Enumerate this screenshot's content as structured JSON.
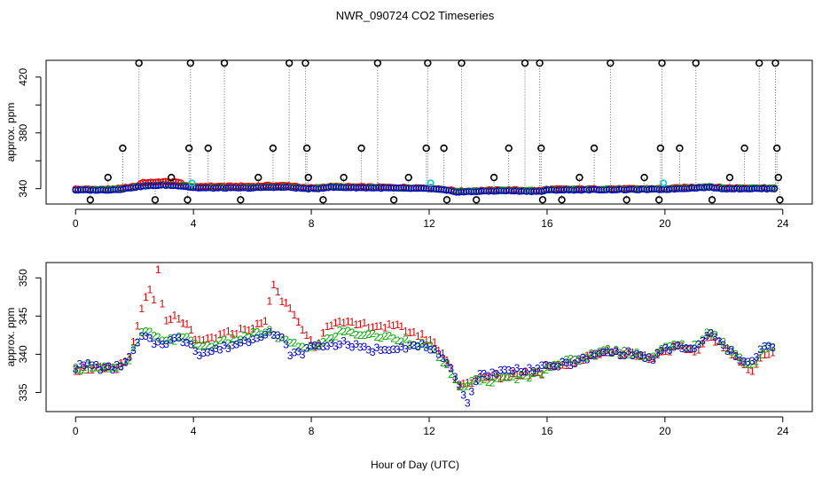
{
  "title": "NWR_090724  CO2 Timeseries",
  "chart_data": [
    {
      "type": "scatter",
      "id": "top",
      "ylabel": "approx. ppm",
      "xlim": [
        -1,
        25
      ],
      "ylim": [
        329,
        432
      ],
      "x_ticks": [
        0,
        4,
        8,
        12,
        16,
        20,
        24
      ],
      "x_tick_labels": [
        "0",
        "4",
        "8",
        "12",
        "16",
        "20",
        "24"
      ],
      "y_ticks": [
        340,
        360,
        380,
        400,
        420
      ],
      "y_tick_labels": [
        "340",
        "",
        "380",
        "",
        "420"
      ],
      "series_colors": {
        "s1": "#dd0000",
        "s2": "#00aa00",
        "s3": "#0000cc",
        "flag": "#000000",
        "cal": "#00cccc"
      },
      "baseline_knots": [
        [
          0,
          339
        ],
        [
          1,
          339
        ],
        [
          1.5,
          339.5
        ],
        [
          2,
          341
        ],
        [
          2.4,
          342
        ],
        [
          3,
          342.5
        ],
        [
          3.6,
          342
        ],
        [
          3.9,
          341
        ],
        [
          4.2,
          340.5
        ],
        [
          6,
          340.5
        ],
        [
          6.5,
          341
        ],
        [
          7.2,
          341
        ],
        [
          7.8,
          340
        ],
        [
          8.2,
          340
        ],
        [
          8.6,
          341
        ],
        [
          12,
          340
        ],
        [
          12.5,
          339
        ],
        [
          13,
          337.5
        ],
        [
          13.6,
          338
        ],
        [
          14.5,
          338.5
        ],
        [
          15.8,
          338
        ],
        [
          16,
          339
        ],
        [
          20,
          339.5
        ],
        [
          21.5,
          341
        ],
        [
          22,
          340
        ],
        [
          23.7,
          340
        ]
      ],
      "excursions": [
        {
          "x": 0.5,
          "y": 332
        },
        {
          "x": 1.1,
          "y": 348
        },
        {
          "x": 1.6,
          "y": 369
        },
        {
          "x": 2.15,
          "y": 430
        },
        {
          "x": 2.7,
          "y": 332
        },
        {
          "x": 3.25,
          "y": 348
        },
        {
          "x": 3.8,
          "y": 332
        },
        {
          "x": 3.85,
          "y": 369
        },
        {
          "x": 3.9,
          "y": 430
        },
        {
          "x": 4.5,
          "y": 369
        },
        {
          "x": 5.05,
          "y": 430
        },
        {
          "x": 5.6,
          "y": 332
        },
        {
          "x": 6.2,
          "y": 348
        },
        {
          "x": 6.7,
          "y": 369
        },
        {
          "x": 7.25,
          "y": 430
        },
        {
          "x": 7.8,
          "y": 430
        },
        {
          "x": 7.85,
          "y": 369
        },
        {
          "x": 7.9,
          "y": 348
        },
        {
          "x": 8.4,
          "y": 332
        },
        {
          "x": 9.1,
          "y": 348
        },
        {
          "x": 9.7,
          "y": 369
        },
        {
          "x": 10.25,
          "y": 430
        },
        {
          "x": 10.8,
          "y": 332
        },
        {
          "x": 11.3,
          "y": 348
        },
        {
          "x": 11.9,
          "y": 369
        },
        {
          "x": 11.95,
          "y": 430
        },
        {
          "x": 12.5,
          "y": 369
        },
        {
          "x": 12.6,
          "y": 332
        },
        {
          "x": 13.1,
          "y": 430
        },
        {
          "x": 13.6,
          "y": 332
        },
        {
          "x": 14.2,
          "y": 348
        },
        {
          "x": 14.7,
          "y": 369
        },
        {
          "x": 15.25,
          "y": 430
        },
        {
          "x": 15.75,
          "y": 430
        },
        {
          "x": 15.8,
          "y": 369
        },
        {
          "x": 15.85,
          "y": 332
        },
        {
          "x": 16.5,
          "y": 332
        },
        {
          "x": 17.1,
          "y": 348
        },
        {
          "x": 17.6,
          "y": 369
        },
        {
          "x": 18.15,
          "y": 430
        },
        {
          "x": 18.7,
          "y": 332
        },
        {
          "x": 19.3,
          "y": 348
        },
        {
          "x": 19.8,
          "y": 332
        },
        {
          "x": 19.85,
          "y": 369
        },
        {
          "x": 19.9,
          "y": 430
        },
        {
          "x": 20.5,
          "y": 369
        },
        {
          "x": 21.05,
          "y": 430
        },
        {
          "x": 21.6,
          "y": 332
        },
        {
          "x": 22.2,
          "y": 348
        },
        {
          "x": 22.7,
          "y": 369
        },
        {
          "x": 23.2,
          "y": 430
        },
        {
          "x": 23.75,
          "y": 430
        },
        {
          "x": 23.8,
          "y": 369
        },
        {
          "x": 23.85,
          "y": 348
        },
        {
          "x": 23.9,
          "y": 332
        }
      ],
      "cal_points": [
        {
          "x": 3.95,
          "y": 344
        },
        {
          "x": 12.05,
          "y": 344
        },
        {
          "x": 19.95,
          "y": 344
        }
      ]
    },
    {
      "type": "line",
      "id": "bottom",
      "ylabel": "approx. ppm",
      "xlabel": "Hour of Day (UTC)",
      "xlim": [
        -1,
        25
      ],
      "ylim": [
        332.5,
        352
      ],
      "x_ticks": [
        0,
        4,
        8,
        12,
        16,
        20,
        24
      ],
      "x_tick_labels": [
        "0",
        "4",
        "8",
        "12",
        "16",
        "20",
        "24"
      ],
      "y_ticks": [
        335,
        340,
        345,
        350
      ],
      "y_tick_labels": [
        "335",
        "340",
        "345",
        "350"
      ],
      "series": [
        {
          "name": "1",
          "color": "#dd0000",
          "knots": [
            [
              0,
              338
            ],
            [
              0.5,
              338.2
            ],
            [
              1,
              338
            ],
            [
              1.4,
              338
            ],
            [
              1.8,
              339.5
            ],
            [
              2,
              342
            ],
            [
              2.3,
              347
            ],
            [
              2.5,
              349
            ],
            [
              2.6,
              345
            ],
            [
              2.8,
              351
            ],
            [
              2.9,
              347
            ],
            [
              3.1,
              344
            ],
            [
              3.4,
              345
            ],
            [
              3.6,
              344.5
            ],
            [
              3.9,
              343
            ],
            [
              4.1,
              341.5
            ],
            [
              4.5,
              342
            ],
            [
              5,
              342.5
            ],
            [
              5.5,
              343
            ],
            [
              6,
              343.5
            ],
            [
              6.4,
              344
            ],
            [
              6.7,
              349
            ],
            [
              7,
              347
            ],
            [
              7.3,
              346
            ],
            [
              7.6,
              344
            ],
            [
              7.9,
              342
            ],
            [
              8.2,
              341
            ],
            [
              8.5,
              344
            ],
            [
              9,
              344
            ],
            [
              10,
              343.8
            ],
            [
              11,
              343.5
            ],
            [
              12,
              342
            ],
            [
              12.5,
              340
            ],
            [
              13,
              336
            ],
            [
              13.5,
              336.5
            ],
            [
              14,
              337
            ],
            [
              14.5,
              337
            ],
            [
              15,
              337.5
            ],
            [
              15.8,
              337.5
            ],
            [
              16,
              338.5
            ],
            [
              17,
              339
            ],
            [
              18,
              340.5
            ],
            [
              19,
              340
            ],
            [
              19.5,
              339.5
            ],
            [
              20,
              340.5
            ],
            [
              20.5,
              341
            ],
            [
              21,
              340
            ],
            [
              21.5,
              342.5
            ],
            [
              22,
              341
            ],
            [
              22.5,
              339
            ],
            [
              23,
              338
            ],
            [
              23.3,
              340
            ],
            [
              23.7,
              340
            ]
          ]
        },
        {
          "name": "2",
          "color": "#00aa00",
          "knots": [
            [
              0,
              338
            ],
            [
              0.5,
              338.5
            ],
            [
              1,
              338.3
            ],
            [
              1.4,
              338
            ],
            [
              1.8,
              339
            ],
            [
              2,
              341
            ],
            [
              2.3,
              343
            ],
            [
              2.6,
              342.5
            ],
            [
              2.8,
              342
            ],
            [
              3.1,
              342
            ],
            [
              3.5,
              342
            ],
            [
              3.9,
              342
            ],
            [
              4.2,
              341
            ],
            [
              5,
              341.5
            ],
            [
              6,
              342.5
            ],
            [
              6.5,
              343
            ],
            [
              7,
              342
            ],
            [
              7.5,
              341
            ],
            [
              7.9,
              341
            ],
            [
              8.2,
              341
            ],
            [
              8.6,
              342
            ],
            [
              9,
              343
            ],
            [
              10,
              342.5
            ],
            [
              11,
              342
            ],
            [
              12,
              341
            ],
            [
              12.5,
              339
            ],
            [
              13,
              335.5
            ],
            [
              13.5,
              336.5
            ],
            [
              14,
              336.5
            ],
            [
              15,
              337
            ],
            [
              15.8,
              337.5
            ],
            [
              16,
              338.5
            ],
            [
              17,
              339.3
            ],
            [
              18,
              340.5
            ],
            [
              19,
              340.2
            ],
            [
              19.5,
              339.5
            ],
            [
              20,
              340.8
            ],
            [
              20.5,
              341.2
            ],
            [
              21,
              341
            ],
            [
              21.5,
              342.8
            ],
            [
              22,
              341.5
            ],
            [
              22.5,
              339.5
            ],
            [
              23,
              338.5
            ],
            [
              23.3,
              340.5
            ],
            [
              23.7,
              340.8
            ]
          ]
        },
        {
          "name": "3",
          "color": "#0000cc",
          "knots": [
            [
              0,
              338.3
            ],
            [
              0.5,
              338.7
            ],
            [
              1,
              338
            ],
            [
              1.4,
              338.3
            ],
            [
              1.8,
              339.2
            ],
            [
              2,
              340.8
            ],
            [
              2.3,
              342.5
            ],
            [
              2.6,
              341.5
            ],
            [
              3,
              341.5
            ],
            [
              3.4,
              342
            ],
            [
              3.9,
              341.5
            ],
            [
              4.2,
              340
            ],
            [
              5,
              340.8
            ],
            [
              6,
              342
            ],
            [
              6.5,
              343
            ],
            [
              7,
              342
            ],
            [
              7.3,
              340
            ],
            [
              7.6,
              340
            ],
            [
              8,
              341
            ],
            [
              8.6,
              341.2
            ],
            [
              9,
              341.5
            ],
            [
              10,
              340.5
            ],
            [
              11,
              341
            ],
            [
              12,
              341
            ],
            [
              12.5,
              339
            ],
            [
              13,
              336.5
            ],
            [
              13.3,
              333.5
            ],
            [
              13.6,
              337
            ],
            [
              14,
              337.5
            ],
            [
              15,
              338
            ],
            [
              15.5,
              338
            ],
            [
              15.8,
              338.2
            ],
            [
              16,
              338.3
            ],
            [
              17,
              339
            ],
            [
              18,
              340.3
            ],
            [
              19,
              340
            ],
            [
              19.5,
              339.3
            ],
            [
              20,
              340.5
            ],
            [
              20.5,
              341
            ],
            [
              21,
              340.5
            ],
            [
              21.5,
              342.8
            ],
            [
              22,
              341
            ],
            [
              22.5,
              339.5
            ],
            [
              23,
              339
            ],
            [
              23.3,
              340.8
            ],
            [
              23.7,
              341
            ]
          ]
        }
      ]
    }
  ]
}
